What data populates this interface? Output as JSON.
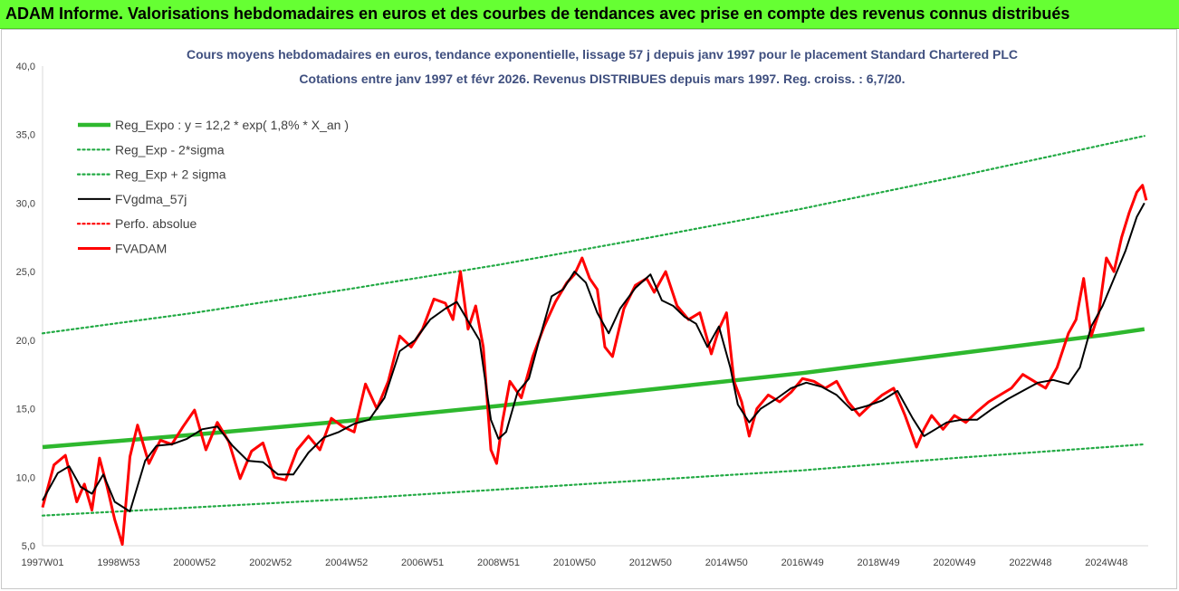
{
  "banner": {
    "title": "ADAM Informe. Valorisations hebdomadaires en euros et des courbes de tendances avec prise en compte des revenus connus distribués"
  },
  "colors": {
    "banner_bg": "#66ff33",
    "reg_expo": "#2eb82e",
    "sigma": "#22aa44",
    "fvgdma": "#000000",
    "perfo": "#ff0000",
    "fvadam": "#ff0000",
    "title_text": "#3f4f7f"
  },
  "chart_data": {
    "type": "line",
    "title": "Cours moyens hebdomadaires en euros, tendance exponentielle, lissage 57 j depuis janv 1997 pour le placement Standard Chartered PLC",
    "subtitle": "Cotations entre janv 1997 et févr 2026. Revenus DISTRIBUES depuis mars 1997. Reg. croiss. : 6,7/20.",
    "xlabel": "",
    "ylabel": "",
    "ylim": [
      5,
      40
    ],
    "xlim": [
      1997.0,
      2026.1
    ],
    "grid": false,
    "legend_position": "top-left",
    "y_ticks": [
      "5,0",
      "10,0",
      "15,0",
      "20,0",
      "25,0",
      "30,0",
      "35,0",
      "40,0"
    ],
    "x_ticks": [
      {
        "label": "1997W01",
        "x": 1997.0
      },
      {
        "label": "1998W53",
        "x": 1999.0
      },
      {
        "label": "2000W52",
        "x": 2001.0
      },
      {
        "label": "2002W52",
        "x": 2003.0
      },
      {
        "label": "2004W52",
        "x": 2005.0
      },
      {
        "label": "2006W51",
        "x": 2007.0
      },
      {
        "label": "2008W51",
        "x": 2009.0
      },
      {
        "label": "2010W50",
        "x": 2011.0
      },
      {
        "label": "2012W50",
        "x": 2013.0
      },
      {
        "label": "2014W50",
        "x": 2015.0
      },
      {
        "label": "2016W49",
        "x": 2017.0
      },
      {
        "label": "2018W49",
        "x": 2019.0
      },
      {
        "label": "2020W49",
        "x": 2021.0
      },
      {
        "label": "2022W48",
        "x": 2023.0
      },
      {
        "label": "2024W48",
        "x": 2025.0
      }
    ],
    "legend": [
      {
        "name": "Reg_Expo : y = 12,2 * exp( 1,8% *  X_an )",
        "style": "thick-solid",
        "color": "#2eb82e"
      },
      {
        "name": "Reg_Exp - 2*sigma",
        "style": "dotted",
        "color": "#22aa44"
      },
      {
        "name": "Reg_Exp + 2 sigma",
        "style": "dotted",
        "color": "#22aa44"
      },
      {
        "name": "FVgdma_57j",
        "style": "solid",
        "color": "#000000"
      },
      {
        "name": "Perfo. absolue",
        "style": "dotted",
        "color": "#ff0000"
      },
      {
        "name": "FVADAM",
        "style": "solid",
        "color": "#ff0000"
      }
    ],
    "series": [
      {
        "name": "Reg_Expo : y = 12,2 * exp( 1,8% *  X_an )",
        "x": [
          1997.0,
          2001.0,
          2005.0,
          2009.0,
          2013.0,
          2017.0,
          2021.0,
          2025.0,
          2026.0
        ],
        "y": [
          12.2,
          13.1,
          14.1,
          15.2,
          16.4,
          17.6,
          19.0,
          20.4,
          20.8
        ]
      },
      {
        "name": "Reg_Exp - 2*sigma",
        "x": [
          1997.0,
          2001.0,
          2005.0,
          2009.0,
          2013.0,
          2017.0,
          2021.0,
          2025.0,
          2026.0
        ],
        "y": [
          7.2,
          7.8,
          8.4,
          9.1,
          9.8,
          10.5,
          11.4,
          12.2,
          12.4
        ]
      },
      {
        "name": "Reg_Exp + 2 sigma",
        "x": [
          1997.0,
          2001.0,
          2005.0,
          2009.0,
          2013.0,
          2017.0,
          2021.0,
          2025.0,
          2026.0
        ],
        "y": [
          20.5,
          22.0,
          23.7,
          25.5,
          27.5,
          29.6,
          31.9,
          34.3,
          34.9
        ]
      },
      {
        "name": "FVgdma_57j",
        "x": [
          1997.0,
          1997.4,
          1997.7,
          1998.0,
          1998.3,
          1998.6,
          1998.9,
          1999.3,
          1999.7,
          2000.0,
          2000.4,
          2000.8,
          2001.2,
          2001.6,
          2002.0,
          2002.4,
          2002.8,
          2003.2,
          2003.6,
          2004.0,
          2004.4,
          2004.8,
          2005.2,
          2005.6,
          2006.0,
          2006.4,
          2006.8,
          2007.2,
          2007.6,
          2007.9,
          2008.2,
          2008.5,
          2008.8,
          2009.0,
          2009.2,
          2009.5,
          2009.8,
          2010.1,
          2010.4,
          2010.7,
          2011.0,
          2011.3,
          2011.6,
          2011.9,
          2012.2,
          2012.6,
          2013.0,
          2013.3,
          2013.6,
          2013.9,
          2014.2,
          2014.5,
          2014.8,
          2015.1,
          2015.3,
          2015.6,
          2015.9,
          2016.3,
          2016.7,
          2017.1,
          2017.5,
          2017.9,
          2018.3,
          2018.7,
          2019.1,
          2019.5,
          2019.9,
          2020.2,
          2020.5,
          2020.8,
          2021.2,
          2021.6,
          2022.0,
          2022.4,
          2022.8,
          2023.2,
          2023.6,
          2024.0,
          2024.3,
          2024.6,
          2024.9,
          2025.2,
          2025.5,
          2025.8,
          2026.0
        ],
        "y": [
          8.3,
          10.3,
          10.8,
          9.3,
          8.8,
          10.2,
          8.2,
          7.5,
          11.2,
          12.3,
          12.4,
          12.8,
          13.5,
          13.7,
          12.3,
          11.2,
          11.1,
          10.2,
          10.2,
          11.8,
          12.9,
          13.3,
          13.9,
          14.2,
          15.8,
          19.2,
          20.0,
          21.5,
          22.3,
          22.8,
          21.4,
          20.0,
          14.2,
          12.8,
          13.3,
          16.2,
          17.2,
          20.3,
          23.2,
          23.7,
          25.0,
          24.2,
          22.0,
          20.5,
          22.3,
          23.8,
          24.8,
          22.9,
          22.5,
          21.7,
          21.2,
          19.5,
          21.0,
          18.0,
          15.3,
          14.0,
          15.0,
          15.7,
          16.5,
          16.9,
          16.6,
          16.0,
          14.9,
          15.2,
          15.6,
          16.3,
          14.3,
          13.0,
          13.5,
          14.0,
          14.2,
          14.2,
          15.0,
          15.7,
          16.3,
          16.9,
          17.1,
          16.8,
          18.0,
          21.0,
          22.5,
          24.5,
          26.5,
          29.0,
          30.0
        ]
      },
      {
        "name": "FVADAM",
        "x": [
          1997.0,
          1997.3,
          1997.6,
          1997.9,
          1998.1,
          1998.3,
          1998.5,
          1998.7,
          1998.9,
          1999.1,
          1999.3,
          1999.5,
          1999.8,
          2000.1,
          2000.4,
          2000.7,
          2001.0,
          2001.3,
          2001.6,
          2001.9,
          2002.2,
          2002.5,
          2002.8,
          2003.1,
          2003.4,
          2003.7,
          2004.0,
          2004.3,
          2004.6,
          2004.9,
          2005.2,
          2005.5,
          2005.8,
          2006.1,
          2006.4,
          2006.7,
          2007.0,
          2007.3,
          2007.6,
          2007.8,
          2008.0,
          2008.2,
          2008.4,
          2008.6,
          2008.8,
          2008.95,
          2009.1,
          2009.3,
          2009.6,
          2009.9,
          2010.2,
          2010.5,
          2010.8,
          2011.0,
          2011.2,
          2011.4,
          2011.6,
          2011.8,
          2012.0,
          2012.3,
          2012.6,
          2012.9,
          2013.1,
          2013.4,
          2013.7,
          2014.0,
          2014.3,
          2014.6,
          2014.8,
          2015.0,
          2015.2,
          2015.4,
          2015.6,
          2015.8,
          2016.1,
          2016.4,
          2016.7,
          2017.0,
          2017.3,
          2017.6,
          2017.9,
          2018.2,
          2018.5,
          2018.8,
          2019.1,
          2019.4,
          2019.7,
          2020.0,
          2020.2,
          2020.4,
          2020.7,
          2021.0,
          2021.3,
          2021.6,
          2021.9,
          2022.2,
          2022.5,
          2022.8,
          2023.1,
          2023.4,
          2023.7,
          2024.0,
          2024.2,
          2024.4,
          2024.6,
          2024.8,
          2025.0,
          2025.2,
          2025.4,
          2025.6,
          2025.8,
          2025.95,
          2026.05
        ],
        "y": [
          7.8,
          10.9,
          11.6,
          8.2,
          9.5,
          7.6,
          11.4,
          9.3,
          6.9,
          5.1,
          11.5,
          13.8,
          11.0,
          12.7,
          12.4,
          13.7,
          14.9,
          12.0,
          14.0,
          12.6,
          9.9,
          11.9,
          12.5,
          10.0,
          9.8,
          12.0,
          13.0,
          12.0,
          14.3,
          13.7,
          13.3,
          16.8,
          15.0,
          17.0,
          20.3,
          19.5,
          20.8,
          23.0,
          22.7,
          21.5,
          25.0,
          20.8,
          22.5,
          19.5,
          12.0,
          11.0,
          14.0,
          17.0,
          15.8,
          18.8,
          21.0,
          22.8,
          24.2,
          24.8,
          26.0,
          24.5,
          23.7,
          19.5,
          18.8,
          22.3,
          24.0,
          24.5,
          23.5,
          25.0,
          22.5,
          21.5,
          22.0,
          19.0,
          20.8,
          22.0,
          17.0,
          15.5,
          13.0,
          15.0,
          16.0,
          15.5,
          16.2,
          17.2,
          17.0,
          16.5,
          17.0,
          15.5,
          14.5,
          15.3,
          16.0,
          16.5,
          14.5,
          12.2,
          13.5,
          14.5,
          13.5,
          14.5,
          14.0,
          14.8,
          15.5,
          16.0,
          16.5,
          17.5,
          17.0,
          16.5,
          18.0,
          20.5,
          21.5,
          24.5,
          20.3,
          22.0,
          26.0,
          25.0,
          27.5,
          29.3,
          30.8,
          31.3,
          30.2
        ]
      }
    ]
  }
}
